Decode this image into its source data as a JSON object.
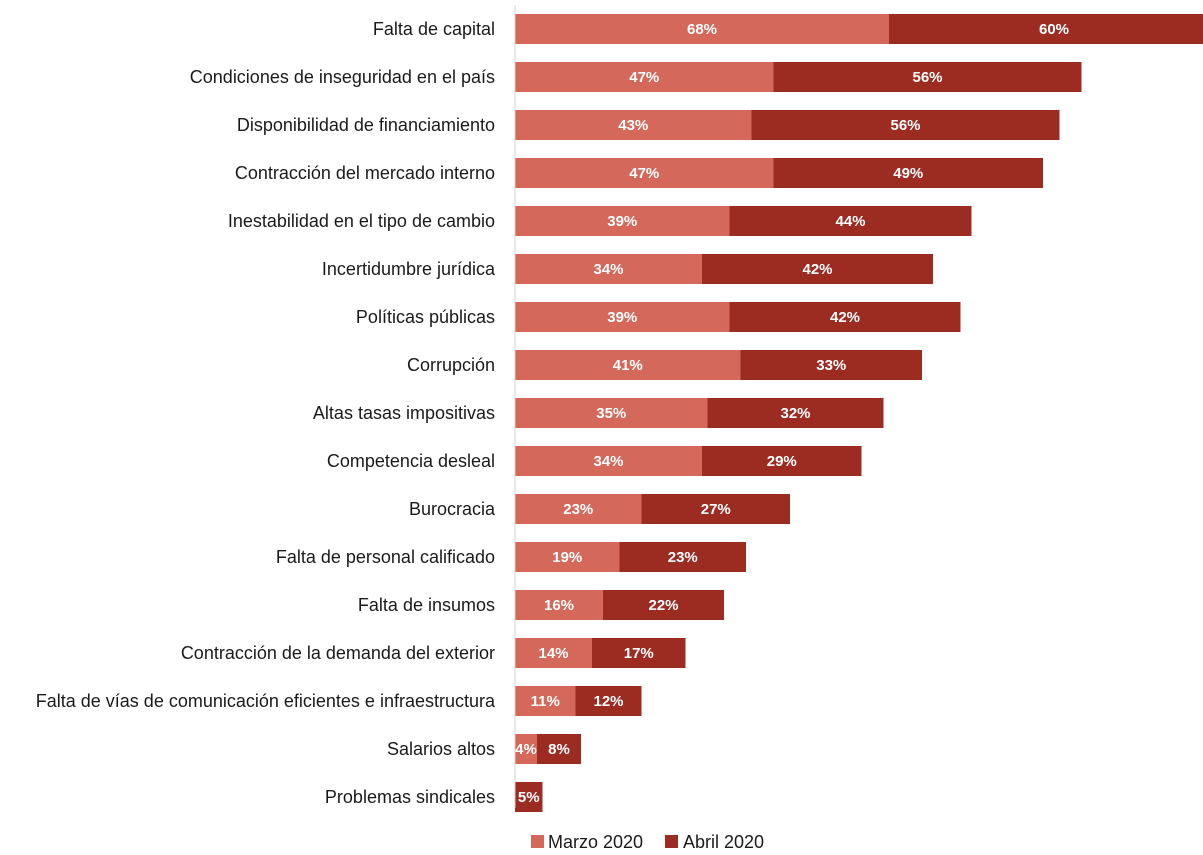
{
  "chart_data": {
    "type": "bar",
    "orientation": "horizontal",
    "stacked": true,
    "categories": [
      "Falta de capital",
      "Condiciones de inseguridad en el país",
      "Disponibilidad de financiamiento",
      "Contracción del mercado interno",
      "Inestabilidad en el tipo de cambio",
      "Incertidumbre jurídica",
      "Políticas públicas",
      "Corrupción",
      "Altas tasas impositivas",
      "Competencia desleal",
      "Burocracia",
      "Falta de personal calificado",
      "Falta de insumos",
      "Contracción de la demanda del exterior",
      "Falta de vías de comunicación eficientes e infraestructura",
      "Salarios altos",
      "Problemas sindicales"
    ],
    "series": [
      {
        "name": "Marzo 2020",
        "color": "#d4685a",
        "values": [
          68,
          47,
          43,
          47,
          39,
          34,
          39,
          41,
          35,
          34,
          23,
          19,
          16,
          14,
          11,
          4,
          null
        ],
        "labels": [
          "68%",
          "47%",
          "43%",
          "47%",
          "39%",
          "34%",
          "39%",
          "41%",
          "35%",
          "34%",
          "23%",
          "19%",
          "16%",
          "14%",
          "11%",
          "4%",
          ""
        ]
      },
      {
        "name": "Abril 2020",
        "color": "#9c2c22",
        "values": [
          60,
          56,
          56,
          49,
          44,
          42,
          42,
          33,
          32,
          29,
          27,
          23,
          22,
          17,
          12,
          8,
          5
        ],
        "labels": [
          "60%",
          "56%",
          "56%",
          "49%",
          "44%",
          "42%",
          "42%",
          "33%",
          "32%",
          "29%",
          "27%",
          "23%",
          "22%",
          "17%",
          "12%",
          "8%",
          "5%"
        ]
      }
    ],
    "legend_position": "bottom",
    "grid": false
  }
}
